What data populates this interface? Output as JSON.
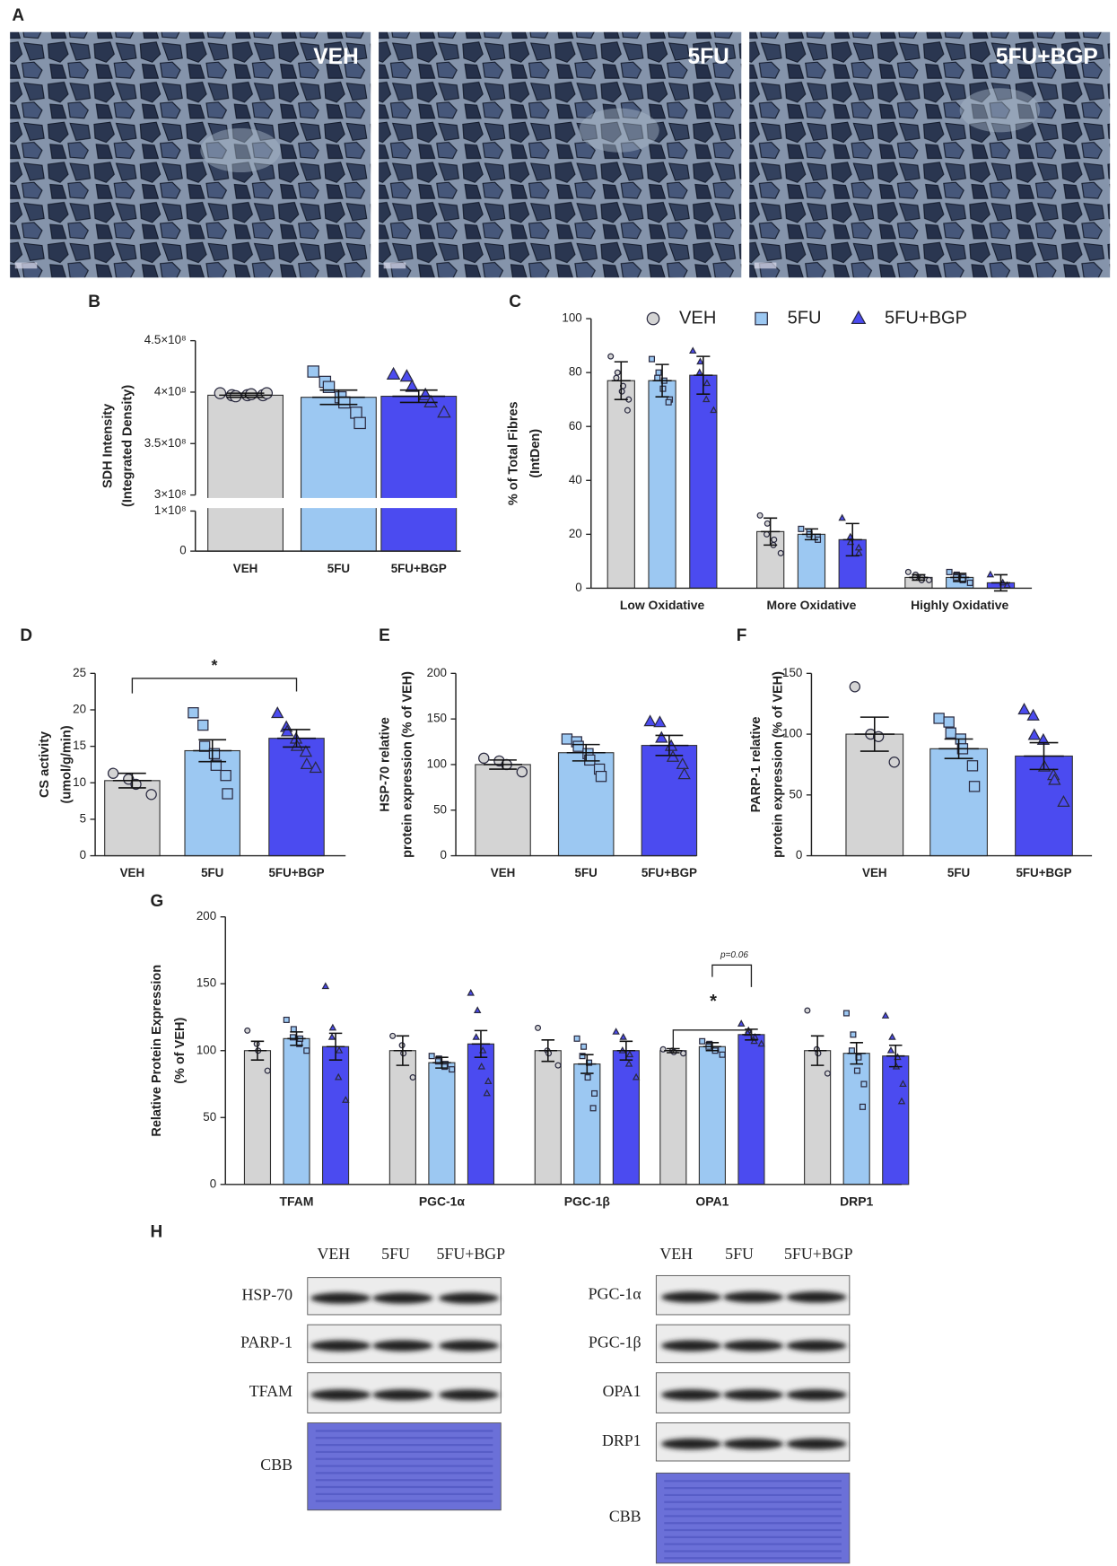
{
  "micrographs": {
    "panel": "A",
    "labels": [
      "VEH",
      "5FU",
      "5FU+BGP"
    ]
  },
  "chart_data": [
    {
      "type": "bar",
      "panel": "B",
      "ylabel": [
        "SDH Intensity",
        "(Integrated Density)"
      ],
      "categories": [
        "VEH",
        "5FU",
        "5FU+BGP"
      ],
      "colors": [
        "#d4d4d4",
        "#9cc8f2",
        "#4b4bf0"
      ],
      "markers": [
        "circle",
        "square",
        "triangle"
      ],
      "values": [
        397000000,
        395000000,
        396000000
      ],
      "errors": [
        2000000,
        7000000,
        6000000
      ],
      "points": [
        [
          399000000,
          397000000,
          396000000,
          397000000,
          398000000,
          397000000,
          399000000
        ],
        [
          420000000,
          410000000,
          405000000,
          395000000,
          390000000,
          380000000,
          370000000
        ],
        [
          417000000,
          415000000,
          405000000,
          397000000,
          390000000,
          380000000
        ]
      ],
      "ylim": [
        0,
        450000000
      ],
      "axis_break": [
        100000000,
        300000000
      ],
      "yticks": [
        0,
        {
          "value": 100000000,
          "label": "1×10⁸"
        },
        {
          "value": 300000000,
          "label": "3×10⁸"
        },
        {
          "value": 350000000,
          "label": "3.5×10⁸"
        },
        {
          "value": 400000000,
          "label": "4×10⁸"
        },
        {
          "value": 450000000,
          "label": "4.5×10⁸"
        }
      ]
    },
    {
      "type": "bar",
      "panel": "C",
      "ylabel": [
        "% of Total Fibres",
        "(IntDen)"
      ],
      "categories": [
        "Low Oxidative",
        "More Oxidative",
        "Highly Oxidative"
      ],
      "series": [
        {
          "name": "VEH",
          "color": "#d4d4d4",
          "marker": "circle",
          "values": [
            77,
            21,
            4
          ],
          "errors": [
            7,
            5,
            1
          ],
          "points": [
            [
              86,
              80,
              78,
              75,
              73,
              70,
              66
            ],
            [
              27,
              24,
              20,
              18,
              16,
              13
            ],
            [
              6,
              5,
              4,
              4,
              3,
              3
            ]
          ]
        },
        {
          "name": "5FU",
          "color": "#9cc8f2",
          "marker": "square",
          "values": [
            77,
            20,
            4
          ],
          "errors": [
            6,
            2,
            1.5
          ],
          "points": [
            [
              85,
              80,
              78,
              77,
              74,
              70,
              69
            ],
            [
              22,
              21,
              20,
              19,
              18
            ],
            [
              6,
              5,
              4,
              4,
              3,
              2
            ]
          ]
        },
        {
          "name": "5FU+BGP",
          "color": "#4b4bf0",
          "marker": "triangle",
          "values": [
            79,
            18,
            2
          ],
          "errors": [
            7,
            6,
            3
          ],
          "points": [
            [
              88,
              84,
              80,
              76,
              70,
              66
            ],
            [
              26,
              19,
              17,
              15,
              13
            ],
            [
              5,
              2,
              1
            ]
          ]
        }
      ],
      "ylim": [
        0,
        100
      ],
      "yticks": [
        0,
        20,
        40,
        60,
        80,
        100
      ],
      "legend": "top"
    },
    {
      "type": "bar",
      "panel": "D",
      "ylabel": [
        "CS activity",
        "(umol/g/min)"
      ],
      "categories": [
        "VEH",
        "5FU",
        "5FU+BGP"
      ],
      "colors": [
        "#d4d4d4",
        "#9cc8f2",
        "#4b4bf0"
      ],
      "markers": [
        "circle",
        "square",
        "triangle"
      ],
      "values": [
        10.3,
        14.4,
        16.1
      ],
      "errors": [
        1,
        1.5,
        1.2
      ],
      "points": [
        [
          11.3,
          10.5,
          9.8,
          8.4
        ],
        [
          19.6,
          17.9,
          15,
          14,
          12.4,
          11,
          8.5
        ],
        [
          19.5,
          17.6,
          17,
          16,
          15,
          14.2,
          12.5,
          12
        ]
      ],
      "ylim": [
        0,
        25
      ],
      "yticks": [
        0,
        5,
        10,
        15,
        20,
        25
      ],
      "annotations": [
        "*"
      ]
    },
    {
      "type": "bar",
      "panel": "E",
      "ylabel": [
        "HSP-70 relative",
        "protein expression (% of VEH)"
      ],
      "categories": [
        "VEH",
        "5FU",
        "5FU+BGP"
      ],
      "colors": [
        "#d4d4d4",
        "#9cc8f2",
        "#4b4bf0"
      ],
      "markers": [
        "circle",
        "square",
        "triangle"
      ],
      "values": [
        100,
        113,
        121
      ],
      "errors": [
        5,
        9,
        11
      ],
      "points": [
        [
          107,
          104,
          100,
          92
        ],
        [
          128,
          125,
          120,
          112,
          105,
          95,
          87
        ],
        [
          147,
          146,
          129,
          120,
          108,
          100,
          89
        ]
      ],
      "ylim": [
        0,
        200
      ],
      "yticks": [
        0,
        50,
        100,
        150,
        200
      ]
    },
    {
      "type": "bar",
      "panel": "F",
      "ylabel": [
        "PARP-1 relative",
        "protein expression (% of VEH)"
      ],
      "categories": [
        "VEH",
        "5FU",
        "5FU+BGP"
      ],
      "colors": [
        "#d4d4d4",
        "#9cc8f2",
        "#4b4bf0"
      ],
      "markers": [
        "circle",
        "square",
        "triangle"
      ],
      "values": [
        100,
        88,
        82
      ],
      "errors": [
        14,
        8,
        11
      ],
      "points": [
        [
          139,
          100,
          98,
          77
        ],
        [
          113,
          110,
          101,
          96,
          88,
          74,
          57
        ],
        [
          120,
          115,
          99,
          95,
          73,
          66,
          62,
          44
        ]
      ],
      "ylim": [
        0,
        150
      ],
      "yticks": [
        0,
        50,
        100,
        150
      ]
    },
    {
      "type": "bar",
      "panel": "G",
      "ylabel": [
        "Relative Protein Expression",
        "(% of VEH)"
      ],
      "categories": [
        "TFAM",
        "PGC-1α",
        "PGC-1β",
        "OPA1",
        "DRP1"
      ],
      "series": [
        {
          "name": "VEH",
          "color": "#d4d4d4",
          "marker": "circle",
          "values": [
            100,
            100,
            100,
            100,
            100
          ],
          "errors": [
            7,
            11,
            8,
            1.5,
            11
          ],
          "points": [
            [
              115,
              105,
              100,
              85
            ],
            [
              111,
              104,
              98,
              80
            ],
            [
              117,
              100,
              98,
              89
            ],
            [
              101,
              100,
              99,
              98
            ],
            [
              130,
              101,
              98,
              83
            ]
          ]
        },
        {
          "name": "5FU",
          "color": "#9cc8f2",
          "marker": "square",
          "values": [
            109,
            91,
            90,
            103,
            98
          ],
          "errors": [
            5,
            4,
            7,
            3,
            8
          ],
          "points": [
            [
              123,
              116,
              110,
              109,
              105,
              100
            ],
            [
              96,
              94,
              92,
              90,
              88,
              86
            ],
            [
              109,
              103,
              96,
              91,
              80,
              68,
              57
            ],
            [
              107,
              105,
              103,
              101,
              100,
              97
            ],
            [
              128,
              112,
              100,
              95,
              85,
              75,
              58
            ]
          ]
        },
        {
          "name": "5FU+BGP",
          "color": "#4b4bf0",
          "marker": "triangle",
          "values": [
            103,
            105,
            100,
            112,
            96
          ],
          "errors": [
            10,
            10,
            7,
            4,
            8
          ],
          "points": [
            [
              148,
              117,
              110,
              100,
              80,
              63
            ],
            [
              143,
              130,
              110,
              100,
              88,
              77,
              68
            ],
            [
              114,
              110,
              100,
              97,
              90,
              80
            ],
            [
              120,
              115,
              113,
              110,
              107,
              105
            ],
            [
              126,
              110,
              100,
              95,
              88,
              75,
              62
            ]
          ]
        }
      ],
      "ylim": [
        0,
        200
      ],
      "yticks": [
        0,
        50,
        100,
        150,
        200
      ],
      "annotations": [
        "*",
        "p=0.06"
      ]
    }
  ],
  "blots": {
    "panel": "H",
    "left": {
      "columns": [
        "VEH",
        "5FU",
        "5FU+BGP"
      ],
      "rows": [
        "HSP-70",
        "PARP-1",
        "TFAM",
        "CBB"
      ]
    },
    "right": {
      "columns": [
        "VEH",
        "5FU",
        "5FU+BGP"
      ],
      "rows": [
        "PGC-1α",
        "PGC-1β",
        "OPA1",
        "DRP1",
        "CBB"
      ]
    }
  }
}
